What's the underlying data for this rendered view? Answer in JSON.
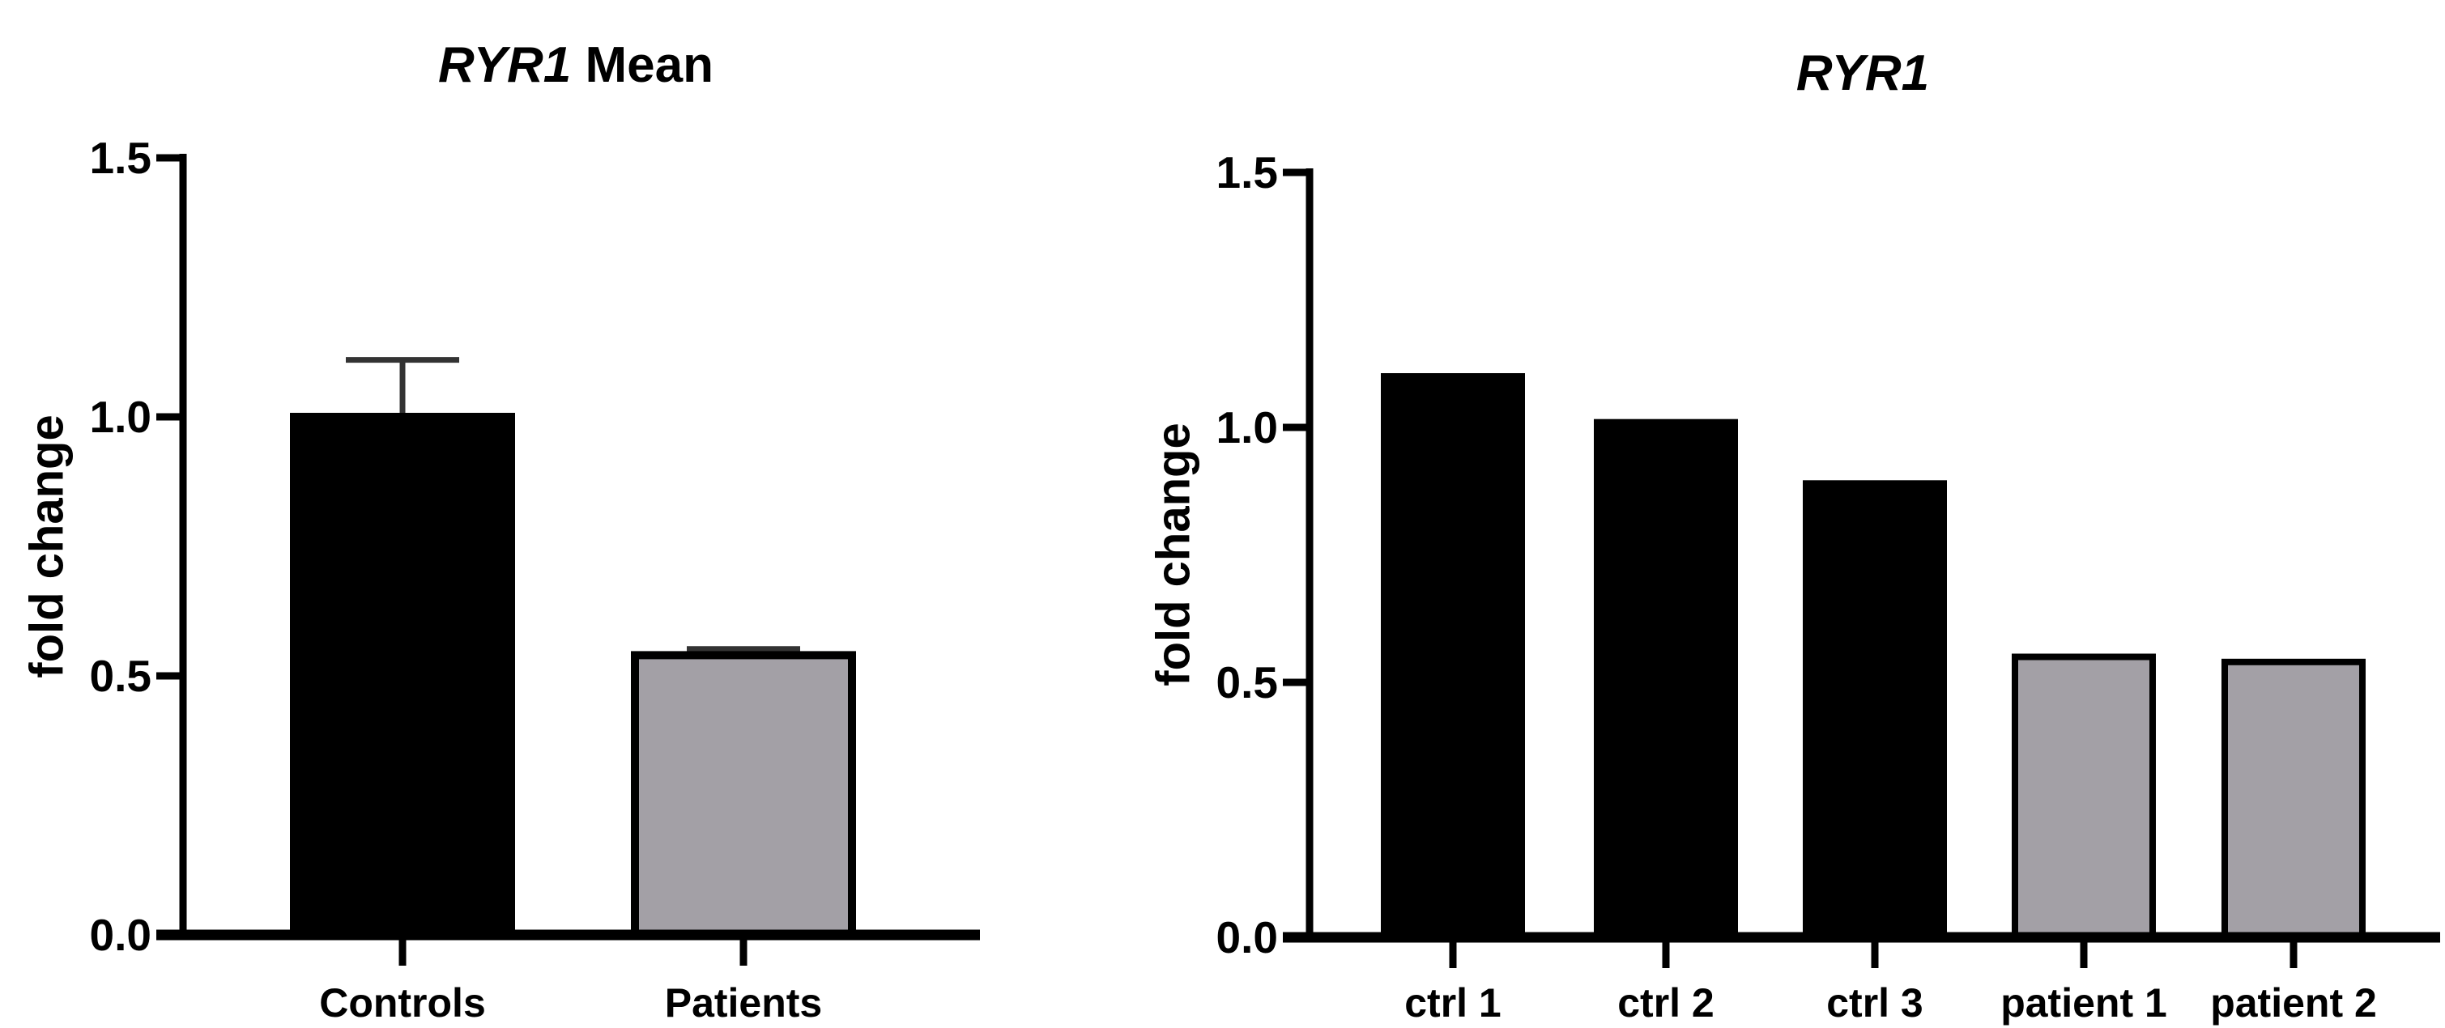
{
  "figure": {
    "background": "#ffffff",
    "text_color": "#000000"
  },
  "chart_data": [
    {
      "type": "bar",
      "title": {
        "italic": "RYR1",
        "rest": " Mean"
      },
      "ylabel": "fold change",
      "xlabel": "",
      "ylim": [
        0,
        1.5
      ],
      "yticks": [
        "0.0",
        "0.5",
        "1.0",
        "1.5"
      ],
      "grid": false,
      "legend": "none",
      "categories": [
        "Controls",
        "Patients"
      ],
      "values": [
        1.0,
        0.54
      ],
      "errors_plus": [
        0.11,
        0.012
      ],
      "bar_fills": [
        "#000000",
        "#a3a0a6"
      ],
      "bar_stroke": "#000000",
      "error_color": "#333333"
    },
    {
      "type": "bar",
      "title": {
        "italic": "RYR1",
        "rest": ""
      },
      "ylabel": "fold change",
      "xlabel": "",
      "ylim": [
        0,
        1.5
      ],
      "yticks": [
        "0.0",
        "0.5",
        "1.0",
        "1.5"
      ],
      "grid": false,
      "legend": "none",
      "categories": [
        "ctrl 1",
        "ctrl 2",
        "ctrl 3",
        "patient 1",
        "patient 2"
      ],
      "values": [
        1.1,
        1.01,
        0.89,
        0.55,
        0.54
      ],
      "errors_plus": [
        0,
        0,
        0,
        0,
        0
      ],
      "bar_fills": [
        "#000000",
        "#000000",
        "#000000",
        "#a3a0a6",
        "#a3a0a6"
      ],
      "bar_stroke": "#000000",
      "error_color": "#333333"
    }
  ]
}
